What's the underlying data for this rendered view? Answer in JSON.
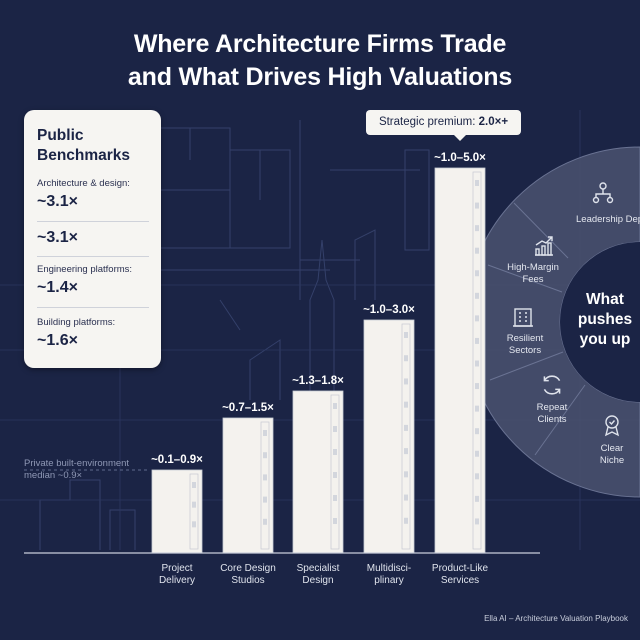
{
  "title_lines": [
    "Where Architecture Firms Trade",
    "and What Drives High Valuations"
  ],
  "benchmarks": {
    "heading": "Public Benchmarks",
    "items": [
      {
        "label": "Architecture & design:",
        "value": "~3.1×"
      },
      {
        "label": "",
        "value": "~3.1×"
      },
      {
        "label": "Engineering platforms:",
        "value": "~1.4×"
      },
      {
        "label": "Building platforms:",
        "value": "~1.6×"
      }
    ]
  },
  "callout": {
    "prefix": "Strategic premium: ",
    "value": "2.0×+"
  },
  "drivers": {
    "center_label": "What pushes you up",
    "items": [
      {
        "label": "Leadership Depth",
        "icon": "org-chart-icon"
      },
      {
        "label": "High-Margin Fees",
        "icon": "growth-chart-icon"
      },
      {
        "label": "Resilient Sectors",
        "icon": "building-icon"
      },
      {
        "label": "Repeat Clients",
        "icon": "cycle-icon"
      },
      {
        "label": "Clear Niche",
        "icon": "badge-icon"
      }
    ]
  },
  "median_note": "Private built-environment median ~0.9×",
  "footer": "Ella AI – Architecture Valuation Playbook",
  "colors": {
    "background": "#1b2445",
    "bar": "#f4f2ee",
    "card": "#f6f5f2",
    "grid_line": "#3b4670"
  },
  "chart_data": {
    "type": "bar",
    "categories": [
      "Project Delivery",
      "Core Design Studios",
      "Specialist Design",
      "Multidisci-plinary",
      "Product-Like Services"
    ],
    "category_lines": [
      [
        "Project",
        "Delivery"
      ],
      [
        "Core Design",
        "Studios"
      ],
      [
        "Specialist",
        "Design"
      ],
      [
        "Multidisci-",
        "plinary"
      ],
      [
        "Product-Like",
        "Services"
      ]
    ],
    "ranges": [
      [
        0.1,
        0.9
      ],
      [
        0.7,
        1.5
      ],
      [
        1.3,
        1.8
      ],
      [
        1.0,
        3.0
      ],
      [
        1.0,
        5.0
      ]
    ],
    "labels": [
      "~0.1–0.9×",
      "~0.7–1.5×",
      "~1.3–1.8×",
      "~1.0–3.0×",
      "~1.0–5.0×"
    ],
    "median": 0.9,
    "grid": false,
    "legend": "none"
  }
}
